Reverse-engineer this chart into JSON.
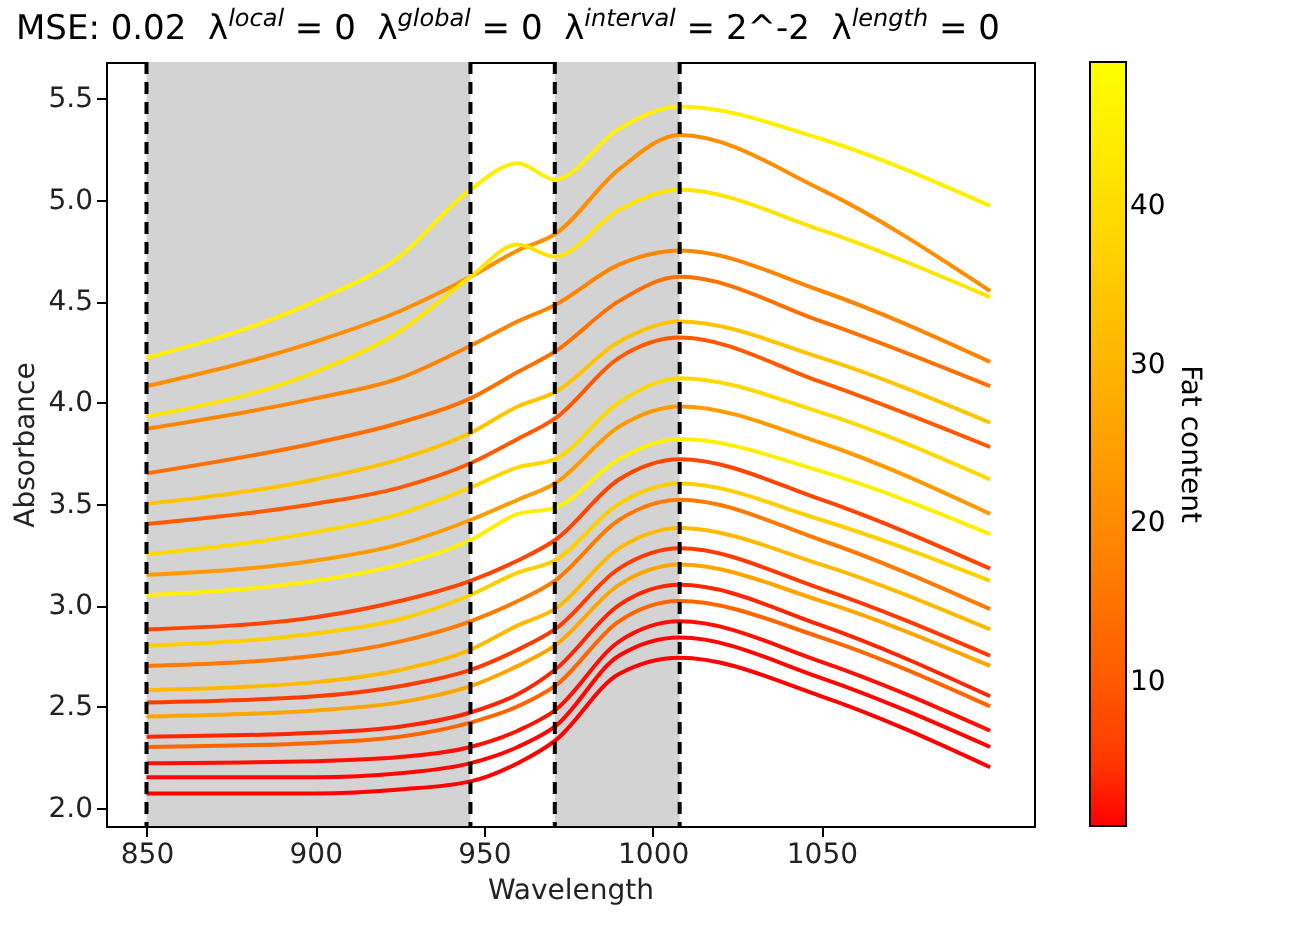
{
  "chart_data": {
    "type": "line",
    "title": "MSE: 0.02  λ$^{local}$ = 0  λ$^{global}$ = 0  λ$^{interval}$ = 2^-2  λ$^{length}$ = 0",
    "xlabel": "Wavelength",
    "ylabel": "Absorbance",
    "clabel": "Fat content",
    "x": [
      850,
      900,
      925,
      946,
      960,
      971,
      990,
      1008,
      1050,
      1100
    ],
    "xlim": [
      838,
      1113
    ],
    "xticks": [
      850,
      900,
      950,
      1000,
      1050
    ],
    "ylim": [
      1.91,
      5.68
    ],
    "yticks": [
      {
        "value": 2,
        "label": "2.0"
      },
      2.5,
      {
        "value": 3,
        "label": "3.0"
      },
      3.5,
      {
        "value": 4,
        "label": "4.0"
      },
      4.5,
      {
        "value": 5,
        "label": "5.0"
      },
      5.5
    ],
    "clim": [
      0.9,
      49.1
    ],
    "cticks": [
      10,
      20,
      30,
      40
    ],
    "grid": false,
    "line_style": "solid",
    "bands": [
      {
        "axis": "x",
        "from": 850,
        "to": 946,
        "color": "#d3d3d3"
      },
      {
        "axis": "x",
        "from": 971,
        "to": 1008,
        "color": "#d3d3d3"
      }
    ],
    "ref_lines": [
      {
        "axis": "x",
        "value": 850,
        "color": "#000000",
        "line_style": "dashed"
      },
      {
        "axis": "x",
        "value": 946,
        "color": "#000000",
        "line_style": "dashed"
      },
      {
        "axis": "x",
        "value": 971,
        "color": "#000000",
        "line_style": "dashed"
      },
      {
        "axis": "x",
        "value": 1008,
        "color": "#000000",
        "line_style": "dashed"
      }
    ],
    "series": [
      {
        "color": "#ffef00",
        "values": [
          4.22,
          4.5,
          4.72,
          5.05,
          5.18,
          5.1,
          5.35,
          5.46,
          5.3,
          4.97
        ]
      },
      {
        "color": "#ff8f00",
        "values": [
          4.08,
          4.3,
          4.45,
          4.62,
          4.75,
          4.83,
          5.15,
          5.32,
          5.05,
          4.55
        ]
      },
      {
        "color": "#ffe400",
        "values": [
          3.93,
          4.15,
          4.35,
          4.62,
          4.78,
          4.72,
          4.95,
          5.05,
          4.85,
          4.52
        ]
      },
      {
        "color": "#ff8500",
        "values": [
          3.87,
          4.02,
          4.12,
          4.28,
          4.4,
          4.48,
          4.68,
          4.75,
          4.55,
          4.2
        ]
      },
      {
        "color": "#ff7000",
        "values": [
          3.65,
          3.8,
          3.9,
          4.02,
          4.15,
          4.25,
          4.5,
          4.62,
          4.4,
          4.08
        ]
      },
      {
        "color": "#ffc400",
        "values": [
          3.5,
          3.62,
          3.72,
          3.85,
          3.98,
          4.05,
          4.3,
          4.4,
          4.22,
          3.9
        ]
      },
      {
        "color": "#ff5a00",
        "values": [
          3.4,
          3.5,
          3.58,
          3.7,
          3.82,
          3.92,
          4.22,
          4.32,
          4.1,
          3.78
        ]
      },
      {
        "color": "#ffd900",
        "values": [
          3.25,
          3.36,
          3.45,
          3.58,
          3.68,
          3.72,
          4.0,
          4.12,
          3.95,
          3.62
        ]
      },
      {
        "color": "#ff9a00",
        "values": [
          3.15,
          3.22,
          3.3,
          3.42,
          3.52,
          3.6,
          3.88,
          3.98,
          3.8,
          3.45
        ]
      },
      {
        "color": "#ffef00",
        "values": [
          3.05,
          3.12,
          3.2,
          3.32,
          3.45,
          3.48,
          3.72,
          3.82,
          3.66,
          3.35
        ]
      },
      {
        "color": "#ff4500",
        "values": [
          2.88,
          2.94,
          3.02,
          3.12,
          3.22,
          3.32,
          3.62,
          3.72,
          3.52,
          3.18
        ]
      },
      {
        "color": "#ffcf00",
        "values": [
          2.8,
          2.86,
          2.93,
          3.05,
          3.16,
          3.22,
          3.5,
          3.6,
          3.42,
          3.12
        ]
      },
      {
        "color": "#ff7a00",
        "values": [
          2.7,
          2.75,
          2.82,
          2.92,
          3.02,
          3.12,
          3.42,
          3.52,
          3.32,
          2.98
        ]
      },
      {
        "color": "#ffba00",
        "values": [
          2.58,
          2.62,
          2.68,
          2.78,
          2.9,
          2.98,
          3.28,
          3.38,
          3.2,
          2.88
        ]
      },
      {
        "color": "#ff3b00",
        "values": [
          2.52,
          2.55,
          2.6,
          2.68,
          2.78,
          2.88,
          3.18,
          3.28,
          3.08,
          2.75
        ]
      },
      {
        "color": "#ffa500",
        "values": [
          2.45,
          2.48,
          2.52,
          2.6,
          2.7,
          2.8,
          3.1,
          3.2,
          3.02,
          2.7
        ]
      },
      {
        "color": "#ff2600",
        "values": [
          2.35,
          2.37,
          2.4,
          2.47,
          2.56,
          2.68,
          3.0,
          3.1,
          2.9,
          2.55
        ]
      },
      {
        "color": "#ff6500",
        "values": [
          2.3,
          2.32,
          2.35,
          2.42,
          2.5,
          2.6,
          2.92,
          3.02,
          2.84,
          2.5
        ]
      },
      {
        "color": "#ff1000",
        "values": [
          2.22,
          2.23,
          2.25,
          2.3,
          2.38,
          2.48,
          2.82,
          2.92,
          2.72,
          2.38
        ]
      },
      {
        "color": "#ff0600",
        "values": [
          2.15,
          2.15,
          2.17,
          2.22,
          2.3,
          2.4,
          2.75,
          2.84,
          2.64,
          2.3
        ]
      },
      {
        "color": "#ff0100",
        "values": [
          2.07,
          2.07,
          2.09,
          2.13,
          2.22,
          2.33,
          2.66,
          2.74,
          2.55,
          2.2
        ]
      }
    ]
  }
}
